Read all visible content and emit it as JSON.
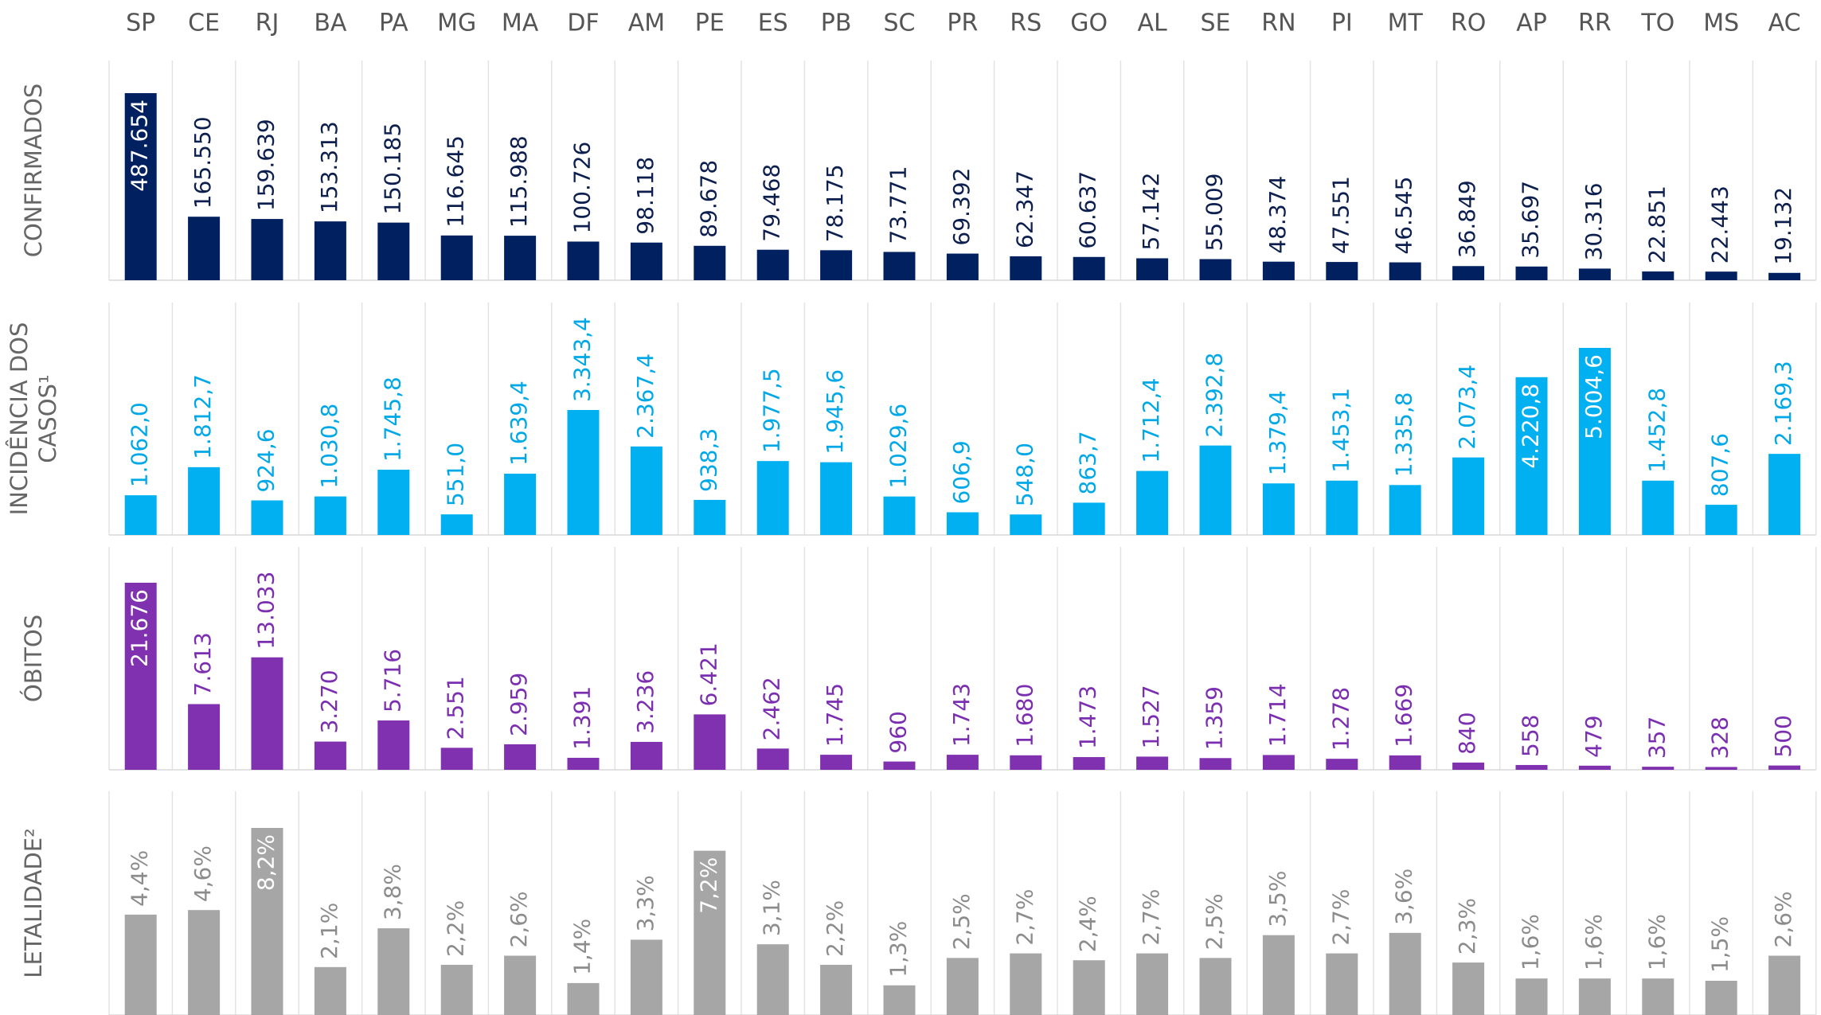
{
  "chart_data": {
    "type": "bar",
    "categories": [
      "SP",
      "CE",
      "RJ",
      "BA",
      "PA",
      "MG",
      "MA",
      "DF",
      "AM",
      "PE",
      "ES",
      "PB",
      "SC",
      "PR",
      "RS",
      "GO",
      "AL",
      "SE",
      "RN",
      "PI",
      "MT",
      "RO",
      "AP",
      "RR",
      "TO",
      "MS",
      "AC"
    ],
    "panels": [
      {
        "label": [
          "CONFIRMADOS"
        ],
        "color": "#002060",
        "text_color": "#0d1f4f",
        "values": [
          487654,
          165550,
          159639,
          153313,
          150185,
          116645,
          115988,
          100726,
          98118,
          89678,
          79468,
          78175,
          73771,
          69392,
          62347,
          60637,
          57142,
          55009,
          48374,
          47551,
          46545,
          36849,
          35697,
          30316,
          22851,
          22443,
          19132
        ],
        "value_labels": [
          "487.654",
          "165.550",
          "159.639",
          "153.313",
          "150.185",
          "116.645",
          "115.988",
          "100.726",
          "98.118",
          "89.678",
          "79.468",
          "78.175",
          "73.771",
          "69.392",
          "62.347",
          "60.637",
          "57.142",
          "55.009",
          "48.374",
          "47.551",
          "46.545",
          "36.849",
          "35.697",
          "30.316",
          "22.851",
          "22.443",
          "19.132"
        ]
      },
      {
        "label": [
          "INCIDÊNCIA DOS",
          "CASOS¹"
        ],
        "color": "#00b0f0",
        "text_color": "#00a8e8",
        "values": [
          1062.0,
          1812.7,
          924.6,
          1030.8,
          1745.8,
          551.0,
          1639.4,
          3343.4,
          2367.4,
          938.3,
          1977.5,
          1945.6,
          1029.6,
          606.9,
          548.0,
          863.7,
          1712.4,
          2392.8,
          1379.4,
          1453.1,
          1335.8,
          2073.4,
          4220.8,
          5004.6,
          1452.8,
          807.6,
          2169.3
        ],
        "value_labels": [
          "1.062,0",
          "1.812,7",
          "924,6",
          "1.030,8",
          "1.745,8",
          "551,0",
          "1.639,4",
          "3.343,4",
          "2.367,4",
          "938,3",
          "1.977,5",
          "1.945,6",
          "1.029,6",
          "606,9",
          "548,0",
          "863,7",
          "1.712,4",
          "2.392,8",
          "1.379,4",
          "1.453,1",
          "1.335,8",
          "2.073,4",
          "4.220,8",
          "5.004,6",
          "1.452,8",
          "807,6",
          "2.169,3"
        ]
      },
      {
        "label": [
          "ÓBITOS"
        ],
        "color": "#8031b0",
        "text_color": "#7b2fb0",
        "values": [
          21676,
          7613,
          13033,
          3270,
          5716,
          2551,
          2959,
          1391,
          3236,
          6421,
          2462,
          1745,
          960,
          1743,
          1680,
          1473,
          1527,
          1359,
          1714,
          1278,
          1669,
          840,
          558,
          479,
          357,
          328,
          500
        ],
        "value_labels": [
          "21.676",
          "7.613",
          "13.033",
          "3.270",
          "5.716",
          "2.551",
          "2.959",
          "1.391",
          "3.236",
          "6.421",
          "2.462",
          "1.745",
          "960",
          "1.743",
          "1.680",
          "1.473",
          "1.527",
          "1.359",
          "1.714",
          "1.278",
          "1.669",
          "840",
          "558",
          "479",
          "357",
          "328",
          "500"
        ]
      },
      {
        "label": [
          "LETALIDADE²"
        ],
        "color": "#a6a6a6",
        "text_color": "#8c8c8c",
        "values": [
          4.4,
          4.6,
          8.2,
          2.1,
          3.8,
          2.2,
          2.6,
          1.4,
          3.3,
          7.2,
          3.1,
          2.2,
          1.3,
          2.5,
          2.7,
          2.4,
          2.7,
          2.5,
          3.5,
          2.7,
          3.6,
          2.3,
          1.6,
          1.6,
          1.6,
          1.5,
          2.6
        ],
        "value_labels": [
          "4,4%",
          "4,6%",
          "8,2%",
          "2,1%",
          "3,8%",
          "2,2%",
          "2,6%",
          "1,4%",
          "3,3%",
          "7,2%",
          "3,1%",
          "2,2%",
          "1,3%",
          "2,5%",
          "2,7%",
          "2,4%",
          "2,7%",
          "2,5%",
          "3,5%",
          "2,7%",
          "3,6%",
          "2,3%",
          "1,6%",
          "1,6%",
          "1,6%",
          "1,5%",
          "2,6%"
        ]
      }
    ]
  }
}
